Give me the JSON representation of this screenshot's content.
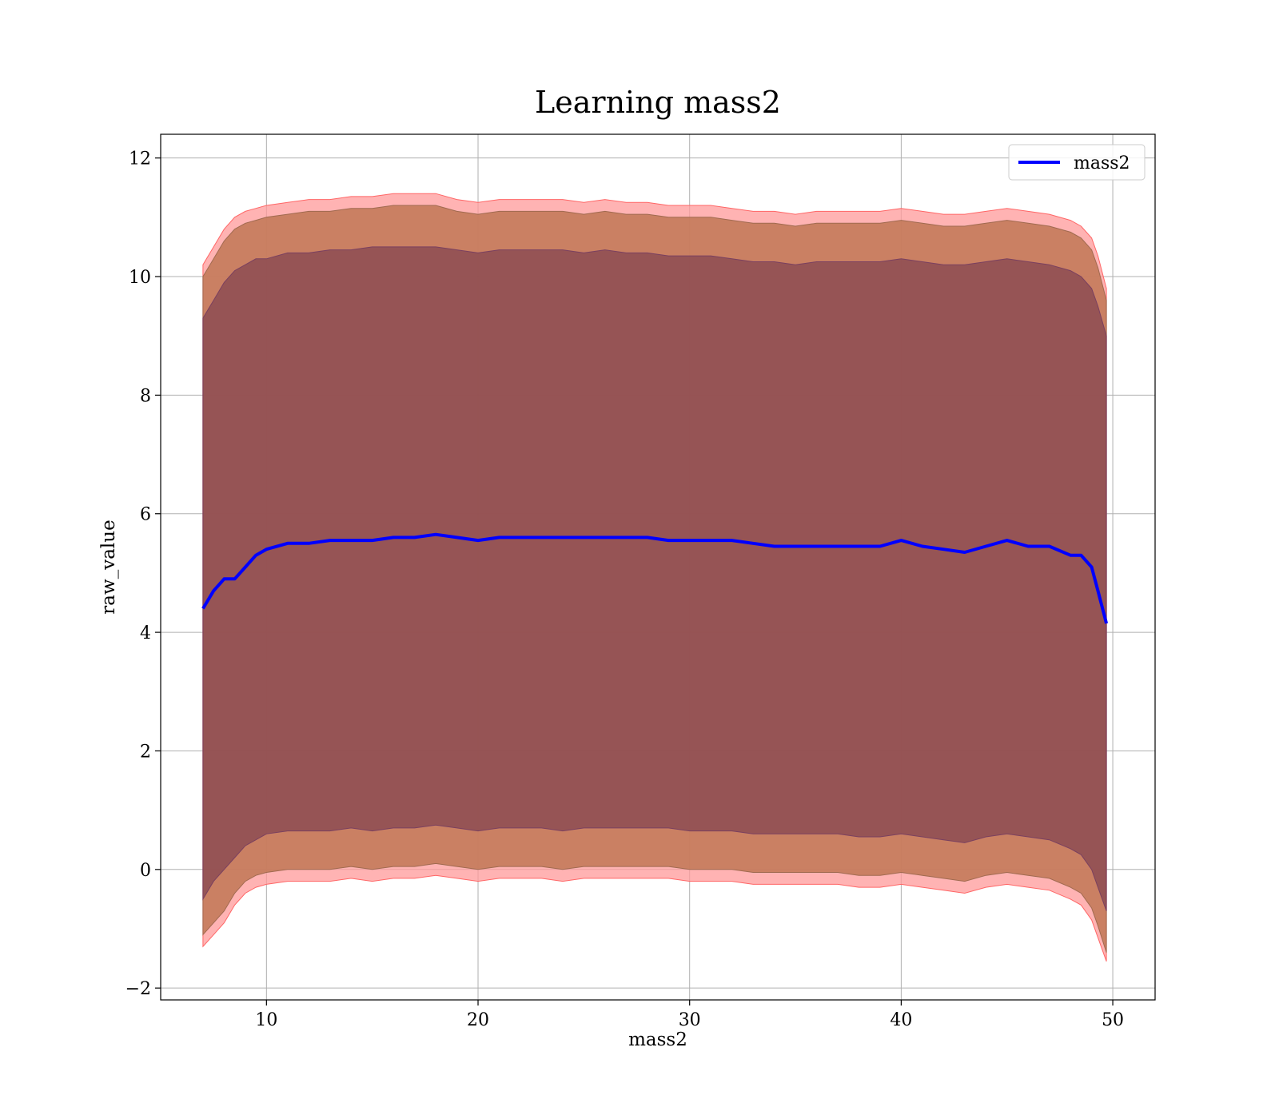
{
  "chart_data": {
    "type": "line",
    "title": "Learning mass2",
    "xlabel": "mass2",
    "ylabel": "raw_value",
    "xlim": [
      5,
      52
    ],
    "ylim": [
      -2.2,
      12.4
    ],
    "x_ticks": [
      10,
      20,
      30,
      40,
      50
    ],
    "y_ticks": [
      -2,
      0,
      2,
      4,
      6,
      8,
      10,
      12
    ],
    "y_tick_labels": [
      "−2",
      "0",
      "2",
      "4",
      "6",
      "8",
      "10",
      "12"
    ],
    "grid": true,
    "legend_position": "top-right",
    "series": [
      {
        "name": "mass2",
        "color": "#0000ff",
        "x": [
          7.0,
          7.5,
          8.0,
          8.5,
          9.0,
          9.5,
          10.0,
          11.0,
          12.0,
          13.0,
          14.0,
          15.0,
          16.0,
          17.0,
          18.0,
          19.0,
          20.0,
          21.0,
          22.0,
          23.0,
          24.0,
          25.0,
          26.0,
          27.0,
          28.0,
          29.0,
          30.0,
          31.0,
          32.0,
          33.0,
          34.0,
          35.0,
          36.0,
          37.0,
          38.0,
          39.0,
          40.0,
          41.0,
          42.0,
          43.0,
          44.0,
          45.0,
          46.0,
          47.0,
          48.0,
          48.5,
          49.0,
          49.3,
          49.7
        ],
        "y": [
          4.4,
          4.7,
          4.9,
          4.9,
          5.1,
          5.3,
          5.4,
          5.5,
          5.5,
          5.55,
          5.55,
          5.55,
          5.6,
          5.6,
          5.65,
          5.6,
          5.55,
          5.6,
          5.6,
          5.6,
          5.6,
          5.6,
          5.6,
          5.6,
          5.6,
          5.55,
          5.55,
          5.55,
          5.55,
          5.5,
          5.45,
          5.45,
          5.45,
          5.45,
          5.45,
          5.45,
          5.55,
          5.45,
          5.4,
          5.35,
          5.45,
          5.55,
          5.45,
          5.45,
          5.3,
          5.3,
          5.1,
          4.7,
          4.15
        ],
        "band_inner_upper": [
          9.3,
          9.6,
          9.9,
          10.1,
          10.2,
          10.3,
          10.3,
          10.4,
          10.4,
          10.45,
          10.45,
          10.5,
          10.5,
          10.5,
          10.5,
          10.45,
          10.4,
          10.45,
          10.45,
          10.45,
          10.45,
          10.4,
          10.45,
          10.4,
          10.4,
          10.35,
          10.35,
          10.35,
          10.3,
          10.25,
          10.25,
          10.2,
          10.25,
          10.25,
          10.25,
          10.25,
          10.3,
          10.25,
          10.2,
          10.2,
          10.25,
          10.3,
          10.25,
          10.2,
          10.1,
          10.0,
          9.8,
          9.5,
          9.0
        ],
        "band_inner_lower": [
          -0.5,
          -0.2,
          0.0,
          0.2,
          0.4,
          0.5,
          0.6,
          0.65,
          0.65,
          0.65,
          0.7,
          0.65,
          0.7,
          0.7,
          0.75,
          0.7,
          0.65,
          0.7,
          0.7,
          0.7,
          0.65,
          0.7,
          0.7,
          0.7,
          0.7,
          0.7,
          0.65,
          0.65,
          0.65,
          0.6,
          0.6,
          0.6,
          0.6,
          0.6,
          0.55,
          0.55,
          0.6,
          0.55,
          0.5,
          0.45,
          0.55,
          0.6,
          0.55,
          0.5,
          0.35,
          0.25,
          0.0,
          -0.3,
          -0.7
        ],
        "band_mid_upper": [
          10.0,
          10.3,
          10.6,
          10.8,
          10.9,
          10.95,
          11.0,
          11.05,
          11.1,
          11.1,
          11.15,
          11.15,
          11.2,
          11.2,
          11.2,
          11.1,
          11.05,
          11.1,
          11.1,
          11.1,
          11.1,
          11.05,
          11.1,
          11.05,
          11.05,
          11.0,
          11.0,
          11.0,
          10.95,
          10.9,
          10.9,
          10.85,
          10.9,
          10.9,
          10.9,
          10.9,
          10.95,
          10.9,
          10.85,
          10.85,
          10.9,
          10.95,
          10.9,
          10.85,
          10.75,
          10.65,
          10.45,
          10.15,
          9.6
        ],
        "band_mid_lower": [
          -1.1,
          -0.9,
          -0.7,
          -0.4,
          -0.2,
          -0.1,
          -0.05,
          0.0,
          0.0,
          0.0,
          0.05,
          0.0,
          0.05,
          0.05,
          0.1,
          0.05,
          0.0,
          0.05,
          0.05,
          0.05,
          0.0,
          0.05,
          0.05,
          0.05,
          0.05,
          0.05,
          0.0,
          0.0,
          0.0,
          -0.05,
          -0.05,
          -0.05,
          -0.05,
          -0.05,
          -0.1,
          -0.1,
          -0.05,
          -0.1,
          -0.15,
          -0.2,
          -0.1,
          -0.05,
          -0.1,
          -0.15,
          -0.3,
          -0.4,
          -0.65,
          -0.95,
          -1.4
        ],
        "band_outer_upper": [
          10.2,
          10.5,
          10.8,
          11.0,
          11.1,
          11.15,
          11.2,
          11.25,
          11.3,
          11.3,
          11.35,
          11.35,
          11.4,
          11.4,
          11.4,
          11.3,
          11.25,
          11.3,
          11.3,
          11.3,
          11.3,
          11.25,
          11.3,
          11.25,
          11.25,
          11.2,
          11.2,
          11.2,
          11.15,
          11.1,
          11.1,
          11.05,
          11.1,
          11.1,
          11.1,
          11.1,
          11.15,
          11.1,
          11.05,
          11.05,
          11.1,
          11.15,
          11.1,
          11.05,
          10.95,
          10.85,
          10.65,
          10.35,
          9.8
        ],
        "band_outer_lower": [
          -1.3,
          -1.1,
          -0.9,
          -0.6,
          -0.4,
          -0.3,
          -0.25,
          -0.2,
          -0.2,
          -0.2,
          -0.15,
          -0.2,
          -0.15,
          -0.15,
          -0.1,
          -0.15,
          -0.2,
          -0.15,
          -0.15,
          -0.15,
          -0.2,
          -0.15,
          -0.15,
          -0.15,
          -0.15,
          -0.15,
          -0.2,
          -0.2,
          -0.2,
          -0.25,
          -0.25,
          -0.25,
          -0.25,
          -0.25,
          -0.3,
          -0.3,
          -0.25,
          -0.3,
          -0.35,
          -0.4,
          -0.3,
          -0.25,
          -0.3,
          -0.35,
          -0.5,
          -0.6,
          -0.85,
          -1.15,
          -1.55
        ]
      }
    ],
    "colors": {
      "line": "#0000ff",
      "band_inner": "#6b2f4a",
      "band_mid": "#c47a5a",
      "band_outer": "#ff9999"
    }
  }
}
